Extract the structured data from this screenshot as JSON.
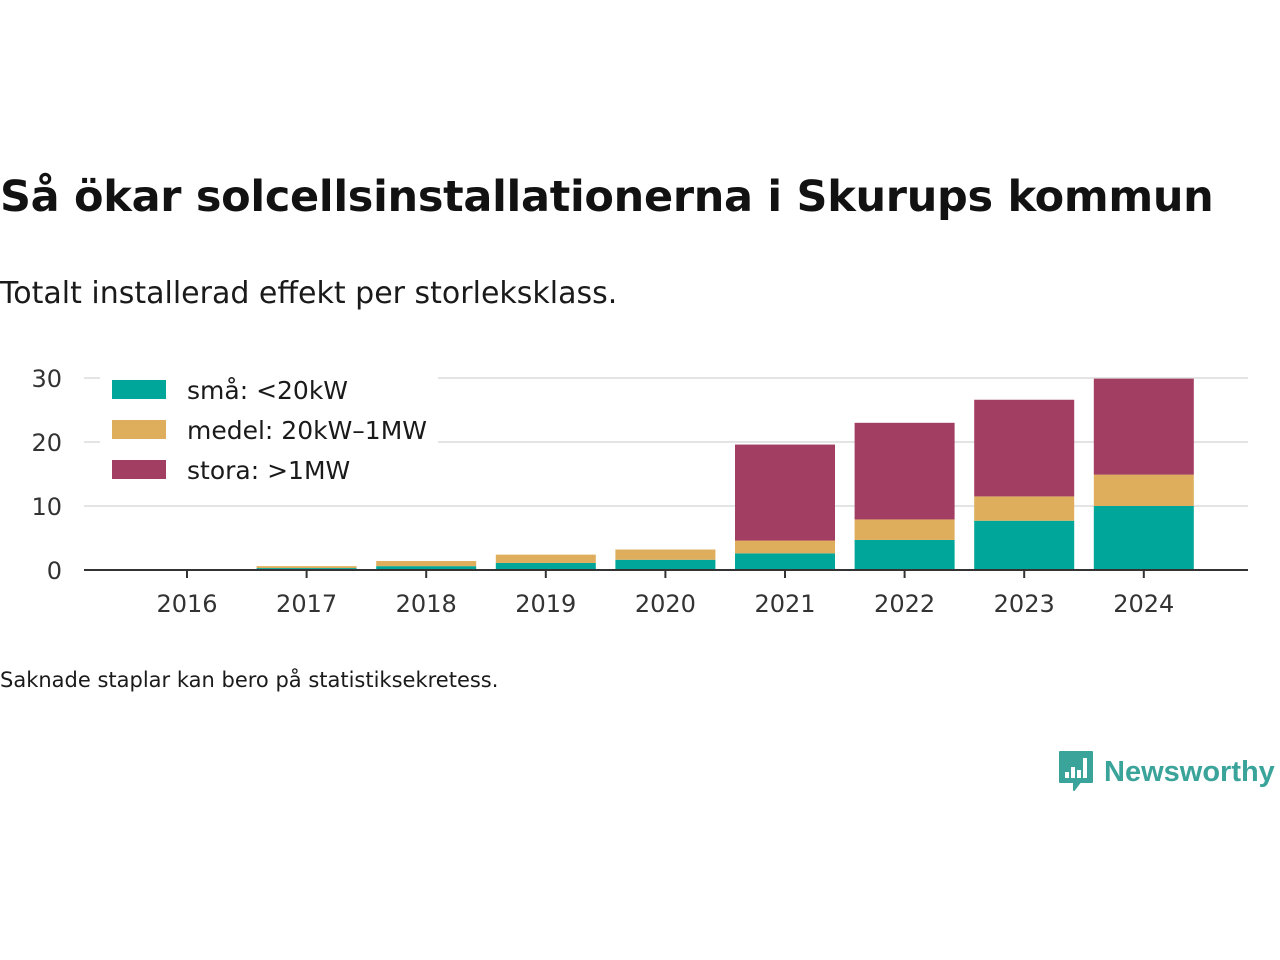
{
  "header": {
    "title": "Så ökar solcellsinstallationerna i Skurups kommun",
    "subtitle": "Totalt installerad effekt per storleksklass."
  },
  "footer": {
    "note": "Saknade staplar kan bero på statistiksekretess.",
    "brand": "Newsworthy",
    "brand_icon": "bar-chart-speech-bubble-icon",
    "brand_color": "#3aa39a"
  },
  "chart_data": {
    "type": "bar",
    "stacked": true,
    "categories": [
      "2016",
      "2017",
      "2018",
      "2019",
      "2020",
      "2021",
      "2022",
      "2023",
      "2024"
    ],
    "series": [
      {
        "name": "små: <20kW",
        "color": "#00a699",
        "values": [
          0.1,
          0.3,
          0.6,
          1.1,
          1.6,
          2.6,
          4.7,
          7.7,
          10.0
        ]
      },
      {
        "name": "medel: 20kW–1MW",
        "color": "#deae5d",
        "values": [
          0.0,
          0.3,
          0.8,
          1.3,
          1.6,
          2.0,
          3.2,
          3.8,
          4.9
        ]
      },
      {
        "name": "stora: >1MW",
        "color": "#a23e62",
        "values": [
          0.0,
          0.0,
          0.0,
          0.0,
          0.0,
          15.0,
          15.1,
          15.1,
          15.0
        ]
      }
    ],
    "yticks": [
      0,
      10,
      20,
      30
    ],
    "ylim": [
      0,
      30
    ],
    "grid": true,
    "legend": "top-left",
    "xlabel": "",
    "ylabel": ""
  }
}
